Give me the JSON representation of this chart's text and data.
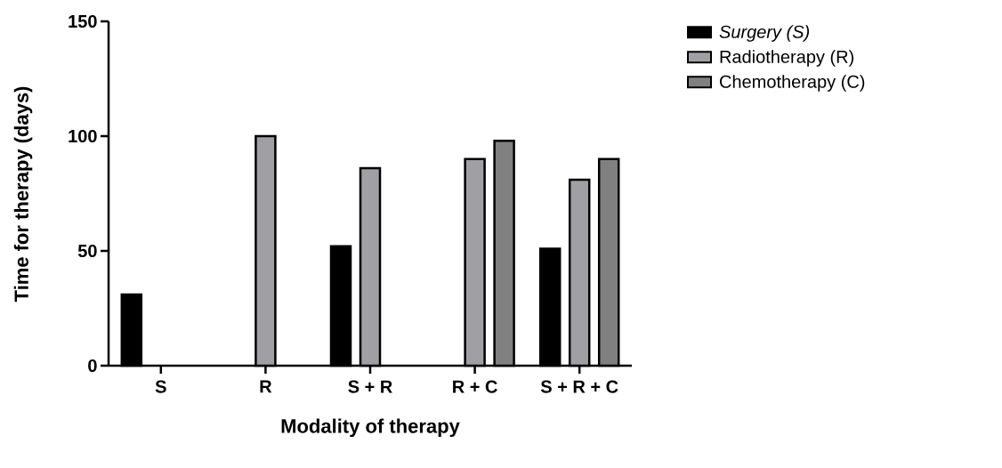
{
  "chart_data": {
    "type": "bar",
    "xlabel": "Modality of therapy",
    "ylabel": "Time for therapy (days)",
    "categories": [
      "S",
      "R",
      "S + R",
      "R + C",
      "S + R + C"
    ],
    "series": [
      {
        "name": "Surgery (S)",
        "color": "#000000",
        "values": [
          31,
          null,
          52,
          null,
          51
        ]
      },
      {
        "name": "Radiotherapy (R)",
        "color": "#a0a0a4",
        "values": [
          null,
          100,
          86,
          90,
          81
        ]
      },
      {
        "name": "Chemotherapy (C)",
        "color": "#808080",
        "values": [
          null,
          null,
          null,
          98,
          90
        ]
      }
    ],
    "ylim": [
      0,
      150
    ],
    "yticks": [
      0,
      50,
      100,
      150
    ],
    "legend": "right"
  }
}
